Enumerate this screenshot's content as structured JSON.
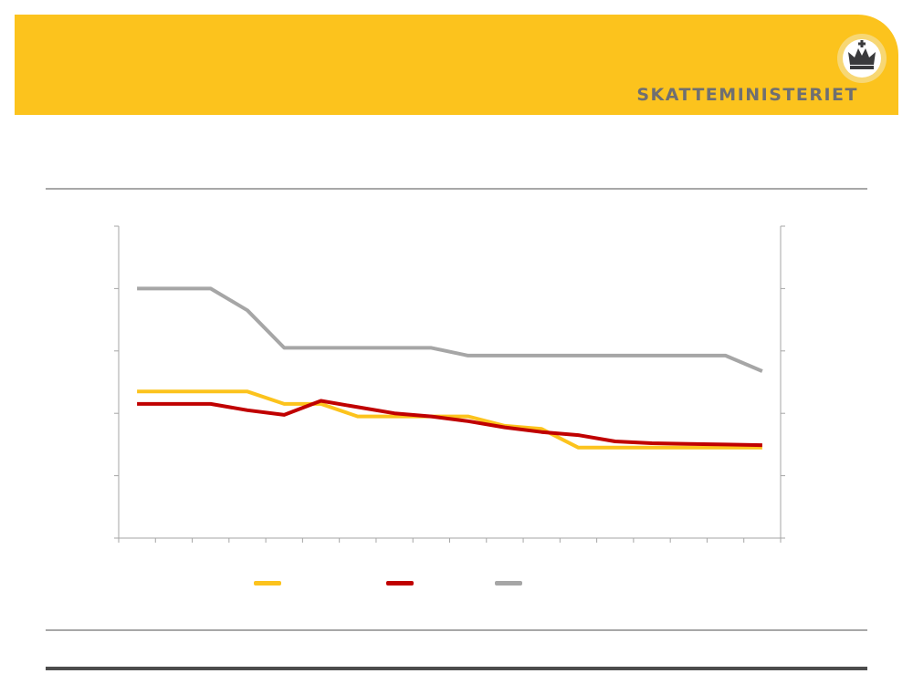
{
  "header": {
    "brand": "SKATTEMINISTERIET",
    "logo_icon": "crown-emblem-icon",
    "banner_color": "#fcc31d"
  },
  "chart_data": {
    "type": "line",
    "title": "",
    "xlabel": "",
    "ylabel": "",
    "grid": false,
    "legend_position": "bottom",
    "ylim": [
      0,
      50
    ],
    "x": [
      0,
      1,
      2,
      3,
      4,
      5,
      6,
      7,
      8,
      9,
      10,
      11,
      12,
      13,
      14,
      15,
      16,
      17
    ],
    "series": [
      {
        "color": "#fcc31d",
        "values": [
          23.5,
          23.5,
          23.5,
          23.5,
          21.5,
          21.5,
          19.5,
          19.5,
          19.5,
          19.5,
          18,
          17.5,
          14.5,
          14.5,
          14.5,
          14.5,
          14.5,
          14.5
        ]
      },
      {
        "color": "#c00000",
        "values": [
          21.5,
          21.5,
          21.5,
          20.5,
          19.75,
          22,
          21,
          20,
          19.5,
          18.75,
          17.75,
          17,
          16.5,
          15.5,
          15.2,
          15.1,
          15.0,
          14.9
        ]
      },
      {
        "color": "#a6a6a6",
        "values": [
          40,
          40,
          40,
          36.5,
          30.5,
          30.5,
          30.5,
          30.5,
          30.5,
          29.25,
          29.25,
          29.25,
          29.25,
          29.25,
          29.25,
          29.25,
          29.25,
          26.75
        ]
      }
    ]
  }
}
